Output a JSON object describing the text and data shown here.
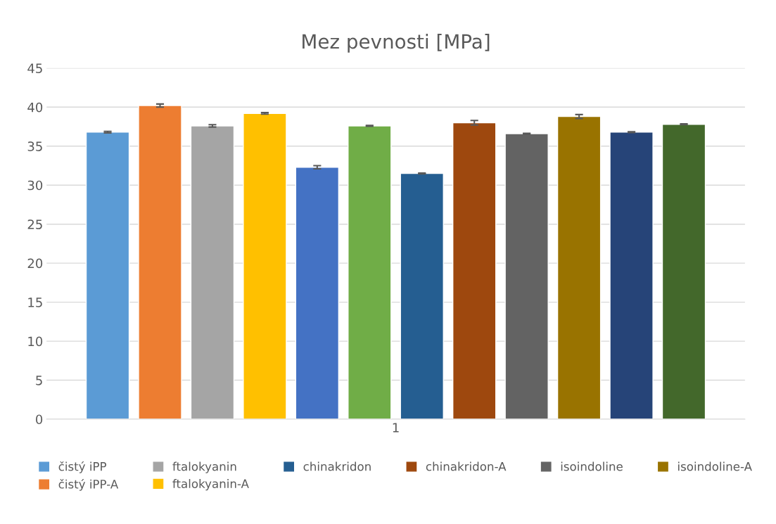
{
  "chart_data": {
    "type": "bar",
    "title": "Mez pevnosti [MPa]",
    "categories": [
      "1"
    ],
    "series": [
      {
        "name": "čistý iPP",
        "color": "#5b9bd5",
        "values": [
          36.8
        ],
        "errors": [
          0.1
        ]
      },
      {
        "name": "čistý iPP-A",
        "color": "#ed7d31",
        "values": [
          40.2
        ],
        "errors": [
          0.2
        ]
      },
      {
        "name": "ftalokyanin",
        "color": "#a5a5a5",
        "values": [
          37.6
        ],
        "errors": [
          0.15
        ]
      },
      {
        "name": "ftalokyanin-A",
        "color": "#ffc000",
        "values": [
          39.2
        ],
        "errors": [
          0.1
        ]
      },
      {
        "color": "#4472c4",
        "values": [
          32.3
        ],
        "errors": [
          0.2
        ]
      },
      {
        "color": "#70ad47",
        "values": [
          37.6
        ],
        "errors": [
          0.05
        ]
      },
      {
        "name": "chinakridon",
        "color": "#255e91",
        "values": [
          31.5
        ],
        "errors": [
          0.05
        ]
      },
      {
        "name": "chinakridon-A",
        "color": "#9e480e",
        "values": [
          38.0
        ],
        "errors": [
          0.3
        ]
      },
      {
        "name": "isoindoline",
        "color": "#636363",
        "values": [
          36.6
        ],
        "errors": [
          0.05
        ]
      },
      {
        "name": "isoindoline-A",
        "color": "#997300",
        "values": [
          38.8
        ],
        "errors": [
          0.25
        ]
      },
      {
        "color": "#264478",
        "values": [
          36.8
        ],
        "errors": [
          0.05
        ]
      },
      {
        "color": "#43682b",
        "values": [
          37.8
        ],
        "errors": [
          0.05
        ]
      }
    ],
    "ylim": [
      0,
      45
    ],
    "yticks": [
      0,
      5,
      10,
      15,
      20,
      25,
      30,
      35,
      40,
      45
    ],
    "grid": "y",
    "legend": "bottom"
  }
}
